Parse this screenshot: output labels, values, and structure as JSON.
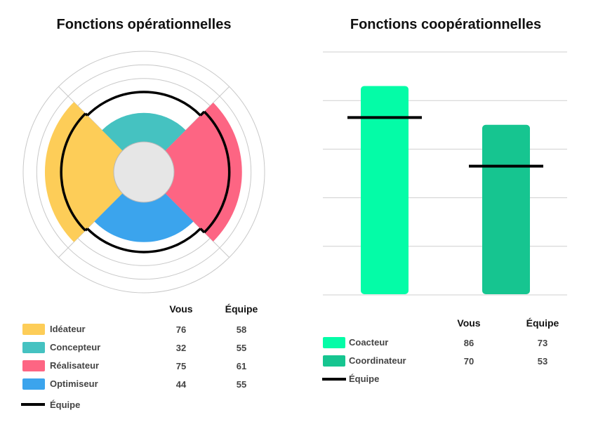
{
  "chart_data": [
    {
      "type": "radial",
      "title": "Fonctions opérationnelles",
      "columns": [
        "Vous",
        "Équipe"
      ],
      "series": [
        {
          "name": "Idéateur",
          "color": "#FDCD58",
          "vous": 76,
          "equipe": 58
        },
        {
          "name": "Concepteur",
          "color": "#45C2C1",
          "vous": 32,
          "equipe": 55
        },
        {
          "name": "Réalisateur",
          "color": "#FD6583",
          "vous": 75,
          "equipe": 61
        },
        {
          "name": "Optimiseur",
          "color": "#3BA4ED",
          "vous": 44,
          "equipe": 55
        }
      ],
      "team_legend": "Équipe"
    },
    {
      "type": "bar",
      "title": "Fonctions coopérationnelles",
      "columns": [
        "Vous",
        "Équipe"
      ],
      "categories": [
        "Coacteur",
        "Coordinateur"
      ],
      "colors": [
        "#04FCA7",
        "#16C590"
      ],
      "vous": [
        86,
        70
      ],
      "equipe": [
        73,
        53
      ],
      "ylim": [
        0,
        100
      ],
      "team_legend": "Équipe"
    }
  ]
}
